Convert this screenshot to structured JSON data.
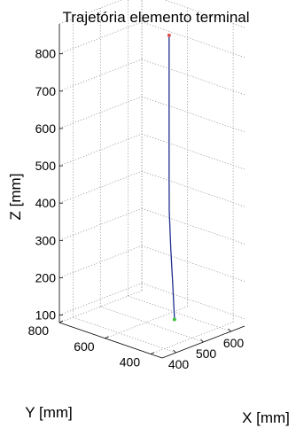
{
  "chart_data": {
    "type": "line3d",
    "title": "Trajetória elemento terminal",
    "xlabel": "X [mm]",
    "ylabel": "Y [mm]",
    "zlabel": "Z [mm]",
    "xlim": [
      350,
      650
    ],
    "ylim": [
      350,
      800
    ],
    "zlim": [
      80,
      880
    ],
    "grid": true,
    "x_ticks": [
      {
        "value": 400,
        "label": "400"
      },
      {
        "value": 500,
        "label": "500"
      },
      {
        "value": 600,
        "label": "600"
      }
    ],
    "y_ticks": [
      {
        "value": 400,
        "label": "400"
      },
      {
        "value": 600,
        "label": "600"
      },
      {
        "value": 800,
        "label": "800"
      }
    ],
    "z_ticks": [
      {
        "value": 100,
        "label": "100"
      },
      {
        "value": 200,
        "label": "200"
      },
      {
        "value": 300,
        "label": "300"
      },
      {
        "value": 400,
        "label": "400"
      },
      {
        "value": 500,
        "label": "500"
      },
      {
        "value": 600,
        "label": "600"
      },
      {
        "value": 700,
        "label": "700"
      },
      {
        "value": 800,
        "label": "800"
      }
    ],
    "series": [
      {
        "color": "#1f2f8f",
        "points": [
          {
            "x": 500,
            "y": 500,
            "z": 870
          },
          {
            "x": 500,
            "y": 500,
            "z": 800
          },
          {
            "x": 500,
            "y": 500,
            "z": 700
          },
          {
            "x": 500,
            "y": 500,
            "z": 600
          },
          {
            "x": 499,
            "y": 499,
            "z": 500
          },
          {
            "x": 499,
            "y": 498,
            "z": 400
          },
          {
            "x": 501,
            "y": 494,
            "z": 300
          },
          {
            "x": 505,
            "y": 490,
            "z": 200
          },
          {
            "x": 507,
            "y": 485,
            "z": 110
          }
        ]
      }
    ],
    "markers": [
      {
        "name": "start",
        "color": "#e05050",
        "x": 500,
        "y": 500,
        "z": 870
      },
      {
        "name": "end",
        "color": "#40c040",
        "x": 507,
        "y": 485,
        "z": 110
      }
    ]
  }
}
